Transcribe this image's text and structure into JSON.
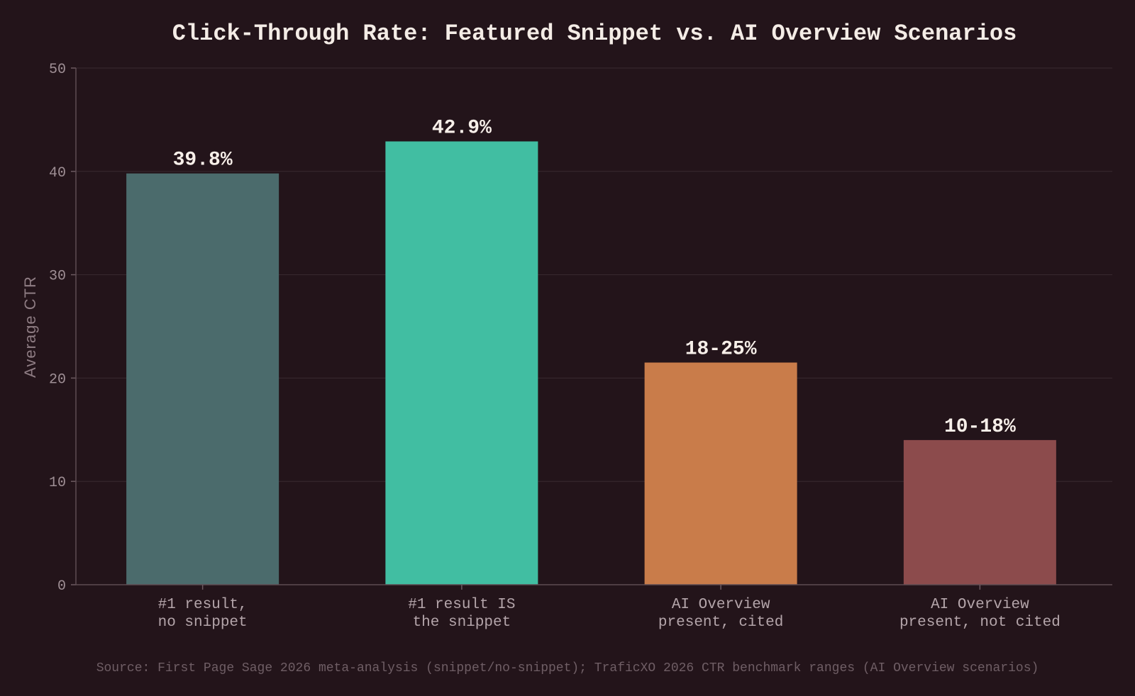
{
  "chart_data": {
    "type": "bar",
    "title": "Click-Through Rate: Featured Snippet vs. AI Overview Scenarios",
    "xlabel": "",
    "ylabel": "Average CTR",
    "ylim": [
      0,
      50
    ],
    "yticks": [
      "0",
      "10",
      "20",
      "30",
      "40",
      "50"
    ],
    "grid": true,
    "categories": [
      [
        "#1 result,",
        "no snippet"
      ],
      [
        "#1 result IS",
        "the snippet"
      ],
      [
        "AI Overview",
        "present, cited"
      ],
      [
        "AI Overview",
        "present, not cited"
      ]
    ],
    "values": [
      39.8,
      42.9,
      21.5,
      14
    ],
    "value_labels": [
      "39.8%",
      "42.9%",
      "18-25%",
      "10-18%"
    ],
    "colors": [
      "#4b6b6c",
      "#41bea2",
      "#c97c4a",
      "#8c4b4c"
    ],
    "source": "Source: First Page Sage 2026 meta-analysis (snippet/no-snippet); TraficXO 2026 CTR benchmark ranges (AI Overview scenarios)"
  }
}
